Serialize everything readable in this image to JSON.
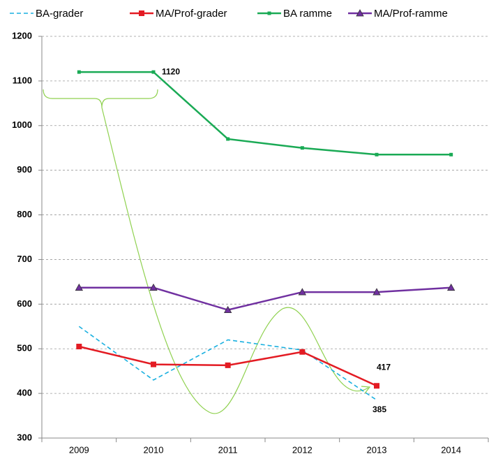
{
  "chart_data": {
    "type": "line",
    "categories": [
      "2009",
      "2010",
      "2011",
      "2012",
      "2013",
      "2014"
    ],
    "series": [
      {
        "name": "BA-grader",
        "color": "#1ab0e0",
        "dash": true,
        "marker": null,
        "values": [
          550,
          430,
          520,
          497,
          385,
          null
        ]
      },
      {
        "name": "MA/Prof-grader",
        "color": "#e31b23",
        "dash": false,
        "marker": "square",
        "values": [
          505,
          465,
          463,
          493,
          417,
          null
        ]
      },
      {
        "name": "BA ramme",
        "color": "#1aaa55",
        "dash": false,
        "marker": "small-square",
        "values": [
          1120,
          1120,
          970,
          950,
          935,
          935
        ]
      },
      {
        "name": "MA/Prof-ramme",
        "color": "#7030a0",
        "dash": false,
        "marker": "triangle",
        "values": [
          637,
          637,
          587,
          627,
          627,
          637
        ]
      }
    ],
    "ylim": [
      300,
      1200
    ],
    "yticks": [
      300,
      400,
      500,
      600,
      700,
      800,
      900,
      1000,
      1100,
      1200
    ],
    "grid": true,
    "legend": "top"
  }
}
